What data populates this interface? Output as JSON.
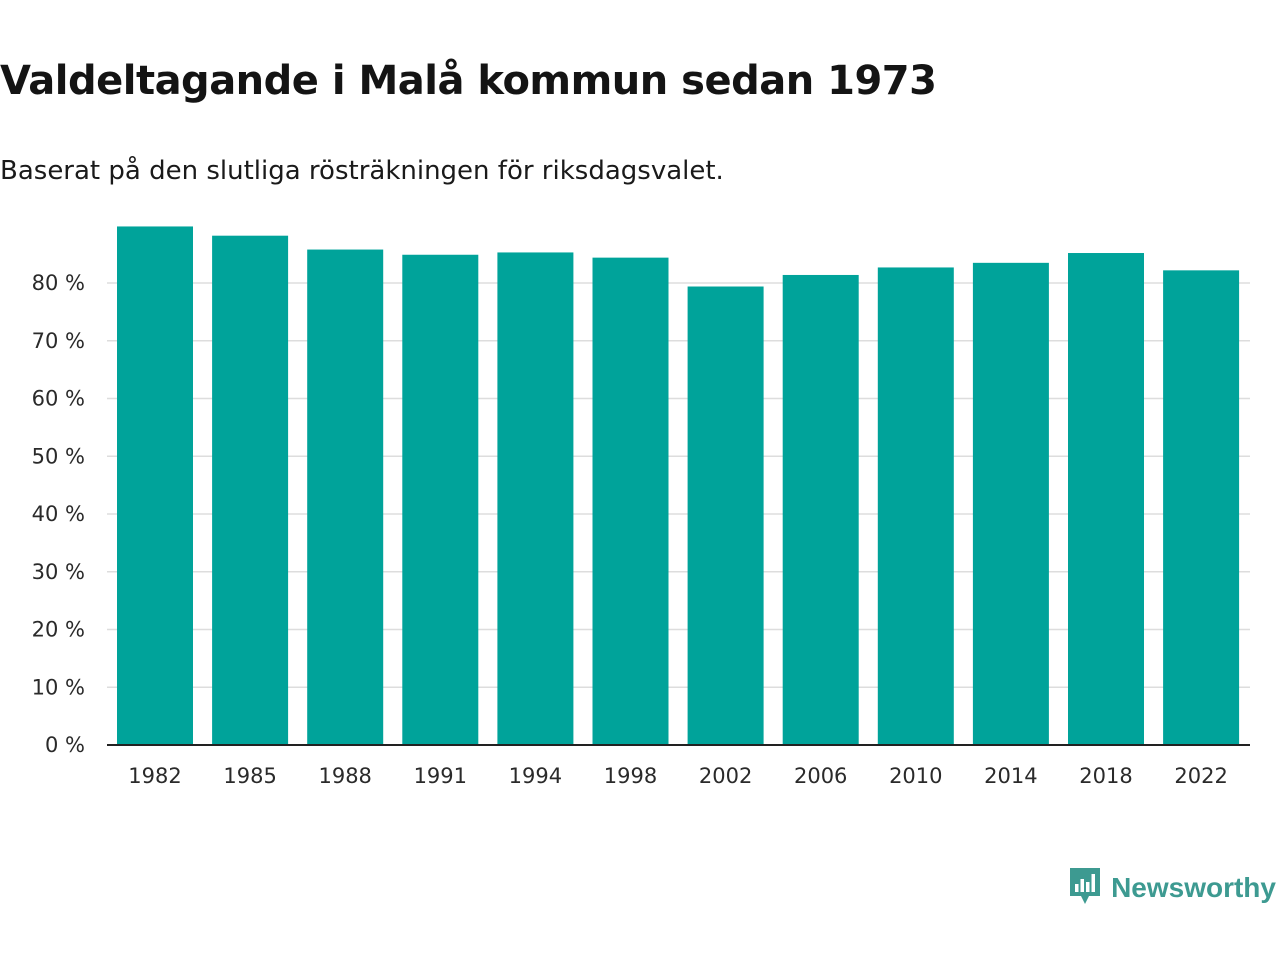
{
  "header": {
    "title": "Valdeltagande i Malå kommun sedan 1973",
    "subtitle": "Baserat på den slutliga rösträkningen för riksdagsvalet."
  },
  "brand": {
    "name": "Newsworthy",
    "icon": "newsworthy-logo-icon",
    "color": "#3d9a91"
  },
  "colors": {
    "bar": "#00a39a",
    "grid": "#dddddd",
    "axis": "#222222"
  },
  "chart_data": {
    "type": "bar",
    "title": "Valdeltagande i Malå kommun sedan 1973",
    "subtitle": "Baserat på den slutliga rösträkningen för riksdagsvalet.",
    "xlabel": "",
    "ylabel": "",
    "categories": [
      "1982",
      "1985",
      "1988",
      "1991",
      "1994",
      "1998",
      "2002",
      "2006",
      "2010",
      "2014",
      "2018",
      "2022"
    ],
    "values": [
      89.8,
      88.2,
      85.8,
      84.9,
      85.3,
      84.4,
      79.4,
      81.4,
      82.7,
      83.5,
      85.2,
      82.2
    ],
    "ylim": [
      0,
      90
    ],
    "yticks": [
      0,
      10,
      20,
      30,
      40,
      50,
      60,
      70,
      80
    ],
    "ytick_labels": [
      "0 %",
      "10 %",
      "20 %",
      "30 %",
      "40 %",
      "50 %",
      "60 %",
      "70 %",
      "80 %"
    ],
    "grid": true,
    "legend": "none"
  }
}
